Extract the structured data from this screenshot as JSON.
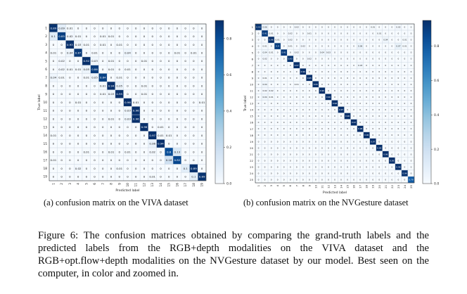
{
  "chart_data": [
    {
      "type": "heatmap",
      "name": "viva",
      "xlabel": "Predicted label",
      "ylabel": "True label",
      "labels": [
        "1",
        "2",
        "3",
        "4",
        "5",
        "6",
        "7",
        "8",
        "9",
        "10",
        "11",
        "12",
        "13",
        "14",
        "15",
        "16",
        "17",
        "18",
        "19"
      ],
      "colorbar_ticks": [
        "0.8",
        "0.6",
        "0.4",
        "0.2",
        "0.0"
      ],
      "colorbar_values": [
        0.8,
        0.6,
        0.4,
        0.2,
        0.0
      ],
      "vmin": 0,
      "vmax": 0.9,
      "matrix": [
        [
          0.89,
          0.09,
          0.01,
          0,
          0,
          0,
          0,
          0,
          0,
          0,
          0,
          0,
          0,
          0,
          0,
          0,
          0,
          0,
          0
        ],
        [
          0.1,
          0.85,
          0.02,
          0.01,
          0,
          0,
          0.01,
          0.01,
          0,
          0,
          0,
          0,
          0,
          0,
          0,
          0,
          0,
          0,
          0
        ],
        [
          0,
          0,
          0.93,
          0.03,
          0.01,
          0,
          0.01,
          0,
          0.01,
          0,
          0,
          0,
          0,
          0,
          0,
          0,
          0,
          0,
          0
        ],
        [
          0.01,
          0,
          0.04,
          0.87,
          0,
          0.01,
          0,
          0,
          0,
          0.04,
          0,
          0,
          0,
          0,
          0,
          0.01,
          0,
          0.01,
          0
        ],
        [
          0,
          0.02,
          0,
          0,
          0.92,
          0.03,
          0,
          0.01,
          0,
          0,
          0,
          0.01,
          0,
          0,
          0,
          0,
          0,
          0,
          0
        ],
        [
          0,
          0.02,
          0.01,
          0.01,
          0.05,
          0.86,
          0,
          0.01,
          0,
          0.01,
          0,
          0,
          0,
          0,
          0,
          0,
          0,
          0,
          0
        ],
        [
          0.04,
          0.01,
          0,
          0,
          0.01,
          0.05,
          0.84,
          0,
          0.01,
          0,
          0,
          0,
          0,
          0,
          0,
          0,
          0,
          0,
          0
        ],
        [
          0,
          0,
          0,
          0,
          0,
          0,
          0.01,
          0.94,
          0.05,
          0,
          0,
          0.01,
          0,
          0,
          0,
          0,
          0,
          0,
          0
        ],
        [
          0,
          0,
          0,
          0,
          0,
          0,
          0.01,
          0.03,
          0.95,
          0,
          0,
          0.01,
          0,
          0,
          0,
          0,
          0,
          0,
          0
        ],
        [
          0,
          0,
          0,
          0.01,
          0,
          0,
          0,
          0,
          0,
          0.96,
          0.01,
          0,
          0,
          0,
          0,
          0,
          0,
          0,
          0.01
        ],
        [
          0,
          0,
          0,
          0,
          0,
          0,
          0,
          0,
          0,
          0.03,
          0.96,
          0,
          0,
          0,
          0,
          0,
          0,
          0,
          0
        ],
        [
          0,
          0,
          0,
          0,
          0,
          0,
          0,
          0.01,
          0,
          0.03,
          0.96,
          0,
          0,
          0,
          0,
          0,
          0,
          0,
          0
        ],
        [
          0,
          0,
          0,
          0,
          0,
          0,
          0,
          0,
          0,
          0,
          0,
          0.98,
          0,
          0.01,
          0,
          0,
          0,
          0,
          0
        ],
        [
          0.01,
          0,
          0,
          0,
          0,
          0,
          0,
          0,
          0,
          0,
          0,
          0,
          0.97,
          0.01,
          0.01,
          0,
          0,
          0,
          0
        ],
        [
          0,
          0,
          0,
          0,
          0,
          0,
          0,
          0,
          0,
          0,
          0,
          0,
          0.06,
          0.94,
          0,
          0,
          0,
          0,
          0
        ],
        [
          0,
          0,
          0,
          0,
          0.01,
          0,
          0,
          0.01,
          0,
          0.01,
          0,
          0,
          0.02,
          0,
          0.8,
          0.13,
          0,
          0,
          0
        ],
        [
          0.01,
          0,
          0,
          0,
          0,
          0,
          0,
          0,
          0,
          0,
          0,
          0,
          0,
          0,
          0.18,
          0.82,
          0,
          0,
          0
        ],
        [
          0,
          0,
          0,
          0.02,
          0,
          0,
          0,
          0,
          0.01,
          0,
          0,
          0,
          0,
          0,
          0,
          0,
          0.1,
          0.89,
          0
        ],
        [
          0,
          0,
          0,
          0,
          0,
          0,
          0,
          0,
          0,
          0,
          0,
          0,
          0.01,
          0,
          0,
          0,
          0,
          0.1,
          0.89
        ]
      ]
    },
    {
      "type": "heatmap",
      "name": "nvgesture",
      "xlabel": "Predicted label",
      "ylabel": "True label",
      "labels": [
        "1",
        "2",
        "3",
        "4",
        "5",
        "6",
        "7",
        "8",
        "9",
        "10",
        "11",
        "12",
        "13",
        "14",
        "15",
        "16",
        "17",
        "18",
        "19",
        "20",
        "21",
        "22",
        "23",
        "24",
        "25"
      ],
      "colorbar_ticks": [
        "0.8",
        "0.6",
        "0.4",
        "0.2",
        "0.0"
      ],
      "colorbar_values": [
        0.8,
        0.6,
        0.4,
        0.2,
        0.0
      ],
      "vmin": 0,
      "vmax": 0.95,
      "matrix": [
        [
          0.93,
          0.06,
          0,
          0,
          0,
          0,
          0.02,
          0,
          0,
          0,
          0,
          0,
          0,
          0,
          0,
          0,
          0,
          0,
          0.01,
          0,
          0,
          0,
          0.02,
          0,
          0
        ],
        [
          0,
          0.91,
          0.01,
          0,
          0,
          0.02,
          0,
          0,
          0.01,
          0,
          0,
          0,
          0,
          0,
          0,
          0,
          0,
          0,
          0,
          0.01,
          0,
          0,
          0,
          0,
          0
        ],
        [
          0,
          0,
          0.96,
          0.01,
          0,
          0.02,
          0,
          0,
          0,
          0,
          0,
          0,
          0,
          0,
          0,
          0,
          0,
          0,
          0,
          0,
          0.04,
          0,
          0,
          0.01,
          0
        ],
        [
          0,
          0.01,
          0,
          0.9,
          0,
          0.01,
          0,
          0.02,
          0,
          0,
          0,
          0,
          0,
          0,
          0,
          0,
          0.06,
          0,
          0,
          0,
          0,
          0,
          0.07,
          0.01,
          0
        ],
        [
          0,
          0.04,
          0.01,
          0,
          0.91,
          0,
          0.02,
          0,
          0,
          0,
          0.04,
          0.03,
          0,
          0,
          0,
          0,
          0,
          0,
          0,
          0,
          0,
          0,
          0,
          0,
          0
        ],
        [
          0,
          0.02,
          0,
          0,
          0,
          0.93,
          0,
          0,
          0.02,
          0,
          0,
          0,
          0,
          0,
          0,
          0,
          0,
          0,
          0,
          0,
          0,
          0,
          0,
          0,
          0
        ],
        [
          0,
          0,
          0,
          0,
          0,
          0,
          0.97,
          0,
          0,
          0,
          0,
          0,
          0,
          0,
          0,
          0,
          0.03,
          0,
          0,
          0,
          0,
          0,
          0,
          0,
          0
        ],
        [
          0,
          0,
          0,
          0,
          0,
          0,
          0,
          0.96,
          0,
          0,
          0,
          0,
          0,
          0,
          0,
          0,
          0,
          0,
          0,
          0,
          0,
          0,
          0,
          0,
          0
        ],
        [
          0,
          0.01,
          0,
          0,
          0,
          0,
          0,
          0,
          0.95,
          0,
          0,
          0,
          0,
          0,
          0,
          0,
          0,
          0,
          0,
          0,
          0,
          0,
          0,
          0,
          0
        ],
        [
          0,
          0.04,
          0,
          0,
          0,
          0,
          0.01,
          0,
          0,
          0.95,
          0,
          0,
          0,
          0,
          0,
          0,
          0,
          0,
          0,
          0,
          0,
          0,
          0,
          0,
          0
        ],
        [
          0,
          0.02,
          0.02,
          0,
          0,
          0,
          0,
          0,
          0,
          0,
          0.96,
          0,
          0,
          0,
          0,
          0,
          0,
          0,
          0,
          0,
          0,
          0,
          0,
          0,
          0
        ],
        [
          0,
          0.04,
          0.01,
          0,
          0,
          0,
          0,
          0,
          0,
          0,
          0,
          0.96,
          0,
          0,
          0,
          0,
          0,
          0,
          0,
          0,
          0,
          0,
          0,
          0,
          0
        ],
        [
          0,
          0,
          0,
          0,
          0,
          0,
          0,
          0,
          0,
          0,
          0,
          0,
          0.98,
          0,
          0,
          0,
          0,
          0,
          0,
          0,
          0,
          0,
          0,
          0,
          0
        ],
        [
          0,
          0,
          0,
          0,
          0,
          0,
          0,
          0,
          0,
          0,
          0,
          0,
          0,
          0.97,
          0,
          0,
          0,
          0,
          0,
          0,
          0,
          0,
          0,
          0,
          0
        ],
        [
          0,
          0,
          0,
          0,
          0,
          0,
          0,
          0,
          0,
          0,
          0,
          0,
          0,
          0,
          0.96,
          0,
          0,
          0,
          0,
          0,
          0,
          0,
          0,
          0,
          0
        ],
        [
          0,
          0,
          0,
          0,
          0,
          0,
          0,
          0,
          0,
          0,
          0,
          0,
          0,
          0,
          0,
          0.97,
          0,
          0,
          0,
          0,
          0,
          0,
          0,
          0,
          0
        ],
        [
          0,
          0,
          0,
          0,
          0,
          0,
          0,
          0,
          0,
          0,
          0,
          0,
          0,
          0,
          0,
          0,
          0.98,
          0,
          0,
          0,
          0,
          0,
          0,
          0,
          0
        ],
        [
          0,
          0,
          0,
          0,
          0,
          0,
          0,
          0,
          0,
          0,
          0,
          0,
          0,
          0,
          0,
          0,
          0,
          0.96,
          0,
          0,
          0,
          0,
          0,
          0,
          0
        ],
        [
          0,
          0,
          0,
          0,
          0,
          0,
          0,
          0,
          0,
          0,
          0,
          0,
          0,
          0,
          0,
          0,
          0,
          0,
          0.97,
          0,
          0,
          0,
          0,
          0,
          0
        ],
        [
          0,
          0,
          0,
          0,
          0,
          0,
          0,
          0,
          0,
          0,
          0,
          0,
          0,
          0,
          0,
          0,
          0,
          0,
          0,
          0.95,
          0,
          0,
          0,
          0,
          0
        ],
        [
          0,
          0,
          0,
          0,
          0,
          0,
          0,
          0,
          0,
          0,
          0,
          0,
          0,
          0,
          0,
          0,
          0,
          0,
          0,
          0,
          0.96,
          0,
          0,
          0,
          0
        ],
        [
          0,
          0,
          0,
          0,
          0,
          0,
          0,
          0,
          0,
          0,
          0,
          0,
          0,
          0,
          0,
          0,
          0,
          0,
          0,
          0,
          0,
          0.95,
          0,
          0,
          0
        ],
        [
          0,
          0,
          0,
          0,
          0,
          0,
          0,
          0,
          0,
          0,
          0,
          0,
          0,
          0,
          0,
          0,
          0,
          0,
          0,
          0,
          0,
          0,
          0.96,
          0,
          0
        ],
        [
          0,
          0,
          0,
          0,
          0,
          0,
          0,
          0,
          0,
          0,
          0,
          0,
          0,
          0,
          0,
          0,
          0,
          0,
          0,
          0,
          0,
          0,
          0,
          0.94,
          0
        ],
        [
          0,
          0,
          0,
          0,
          0,
          0,
          0,
          0,
          0,
          0,
          0,
          0,
          0,
          0,
          0,
          0,
          0,
          0,
          0,
          0,
          0,
          0,
          0,
          0,
          0.79
        ]
      ]
    }
  ],
  "subcaption_a": "(a) confusion matrix on the VIVA dataset",
  "subcaption_b": "(b) confusion matrix on the NVGesture dataset",
  "caption": "Figure 6: The confusion matrices obtained by comparing the grand-truth labels and the predicted labels from the RGB+depth modalities on the VIVA dataset and the RGB+opt.flow+depth modalities on the NVGesture dataset by our model. Best seen on the computer, in color and zoomed in."
}
